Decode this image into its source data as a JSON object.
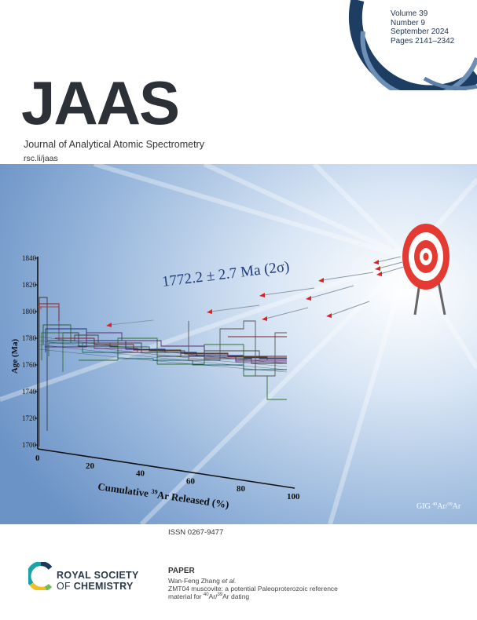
{
  "cover": {
    "volume": "Volume 39",
    "number": "Number 9",
    "date": "September 2024",
    "pages": "Pages 2141–2342",
    "title": "JAAS",
    "journal_name": "Journal of Analytical Atomic Spectrometry",
    "url": "rsc.li/jaas",
    "issn": "ISSN 0267-9477"
  },
  "figure": {
    "annotation": "1772.2 ± 2.7 Ma (2σ)",
    "ylabel": "Age (Ma)",
    "xlabel_prefix": "Cumulative ",
    "xlabel_sup": "39",
    "xlabel_suffix": "Ar Released (%)",
    "y_ticks": [
      "1840",
      "1820",
      "1800",
      "1780",
      "1760",
      "1740",
      "1720",
      "1700"
    ],
    "x_ticks": [
      "0",
      "20",
      "40",
      "60",
      "80",
      "100"
    ],
    "lab_prefix": "GIG ",
    "lab_sup1": "40",
    "lab_mid": "Ar/",
    "lab_sup2": "39",
    "lab_suffix": "Ar"
  },
  "publisher": {
    "line1": "ROYAL SOCIETY",
    "line2_prefix": "OF ",
    "line2_bold": "CHEMISTRY",
    "colors": {
      "teal": "#1aa3a8",
      "yellow": "#f2c01e",
      "navy": "#1c3a5e"
    }
  },
  "paper": {
    "label": "PAPER",
    "authors": "Wan-Feng Zhang",
    "et_al": " et al.",
    "title_line1": "ZMT04 muscovite: a potential Paleoproterozoic reference",
    "title_line2_prefix": "material for ",
    "sup1": "40",
    "title_line2_mid": "Ar/",
    "sup2": "39",
    "title_line2_suffix": "Ar dating"
  }
}
